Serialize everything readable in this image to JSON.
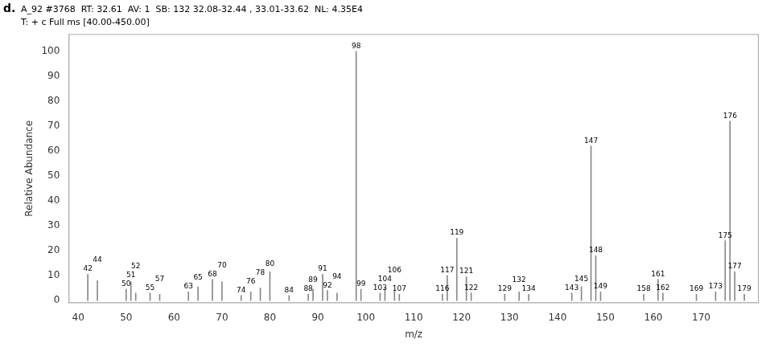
{
  "chart_data": {
    "type": "bar",
    "title": "A_92 #3768  RT: 32.61  AV: 1  SB: 132 32.08-32.44 , 33.01-33.62  NL: 4.35E4",
    "subtitle": "T: + c Full ms [40.00-450.00]",
    "annotations": [
      "d."
    ],
    "xlabel": "m/z",
    "ylabel": "Relative Abundance",
    "x": [
      42,
      44,
      50,
      51,
      52,
      55,
      57,
      63,
      65,
      68,
      70,
      74,
      76,
      78,
      80,
      84,
      88,
      89,
      91,
      92,
      94,
      98,
      99,
      103,
      104,
      106,
      107,
      116,
      117,
      119,
      121,
      122,
      129,
      132,
      134,
      143,
      145,
      147,
      148,
      149,
      158,
      161,
      162,
      169,
      173,
      175,
      176,
      177,
      179
    ],
    "values": [
      10.5,
      8.0,
      4.5,
      7.5,
      3.0,
      3.0,
      2.5,
      3.5,
      5.5,
      8.5,
      7.5,
      2.0,
      3.5,
      5.0,
      11.5,
      2.0,
      2.5,
      4.5,
      10.5,
      4.0,
      3.0,
      100.0,
      4.5,
      3.0,
      5.0,
      4.0,
      2.5,
      2.5,
      10.0,
      25.0,
      9.5,
      3.0,
      2.5,
      3.5,
      2.5,
      3.0,
      5.5,
      62.0,
      18.0,
      3.5,
      2.5,
      8.5,
      3.0,
      2.5,
      3.5,
      24.0,
      72.0,
      11.5,
      2.5
    ],
    "labels": [
      "42",
      "44",
      "50",
      "51",
      "52",
      "55",
      "57",
      "63",
      "65",
      "68",
      "70",
      "74",
      "76",
      "78",
      "80",
      "84",
      "88",
      "89",
      "91",
      "92",
      "94",
      "98",
      "99",
      "103",
      "104",
      "106",
      "107",
      "116",
      "117",
      "119",
      "121",
      "122",
      "129",
      "132",
      "134",
      "143",
      "145",
      "147",
      "148",
      "149",
      "158",
      "161",
      "162",
      "169",
      "173",
      "175",
      "176",
      "177",
      "179"
    ],
    "color": "#888888",
    "xlim": [
      38,
      182
    ],
    "ylim": [
      -1,
      107
    ],
    "xticks": [
      40,
      50,
      60,
      70,
      80,
      90,
      100,
      110,
      120,
      130,
      140,
      150,
      160,
      170
    ],
    "yticks": [
      0,
      10,
      20,
      30,
      40,
      50,
      60,
      70,
      80,
      90,
      100
    ],
    "grid": false
  }
}
